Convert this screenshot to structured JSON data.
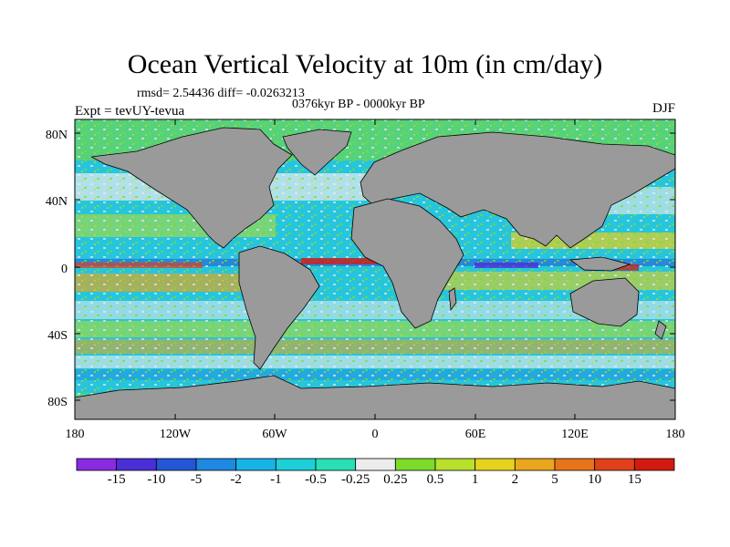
{
  "title": "Ocean Vertical Velocity at 10m (in cm/day)",
  "stats": "rmsd= 2.54436 diff= -0.0263213",
  "period": "0376kyr BP - 0000kyr BP",
  "experiment": "Expt = tevUY-tevua",
  "season": "DJF",
  "lat_labels": [
    "80N",
    "40N",
    "0",
    "40S",
    "80S"
  ],
  "lon_labels": [
    "180",
    "120W",
    "60W",
    "0",
    "60E",
    "120E",
    "180"
  ],
  "colorbar": {
    "labels": [
      "-15",
      "-10",
      "-5",
      "-2",
      "-1",
      "-0.5",
      "-0.25",
      "0.25",
      "0.5",
      "1",
      "2",
      "5",
      "10",
      "15"
    ],
    "colors": [
      "#8a2be2",
      "#4b2fd6",
      "#2456d8",
      "#1f88e0",
      "#17b3e6",
      "#1ccfd8",
      "#28e0b4",
      "#ececec",
      "#7ddc2a",
      "#b8e02c",
      "#e6d21c",
      "#eaa61c",
      "#e8741a",
      "#e0401a",
      "#d41a10"
    ]
  },
  "colors": {
    "land": "#9a9a9a",
    "ocean_base": "#25c6dd",
    "coast": "#000000"
  }
}
